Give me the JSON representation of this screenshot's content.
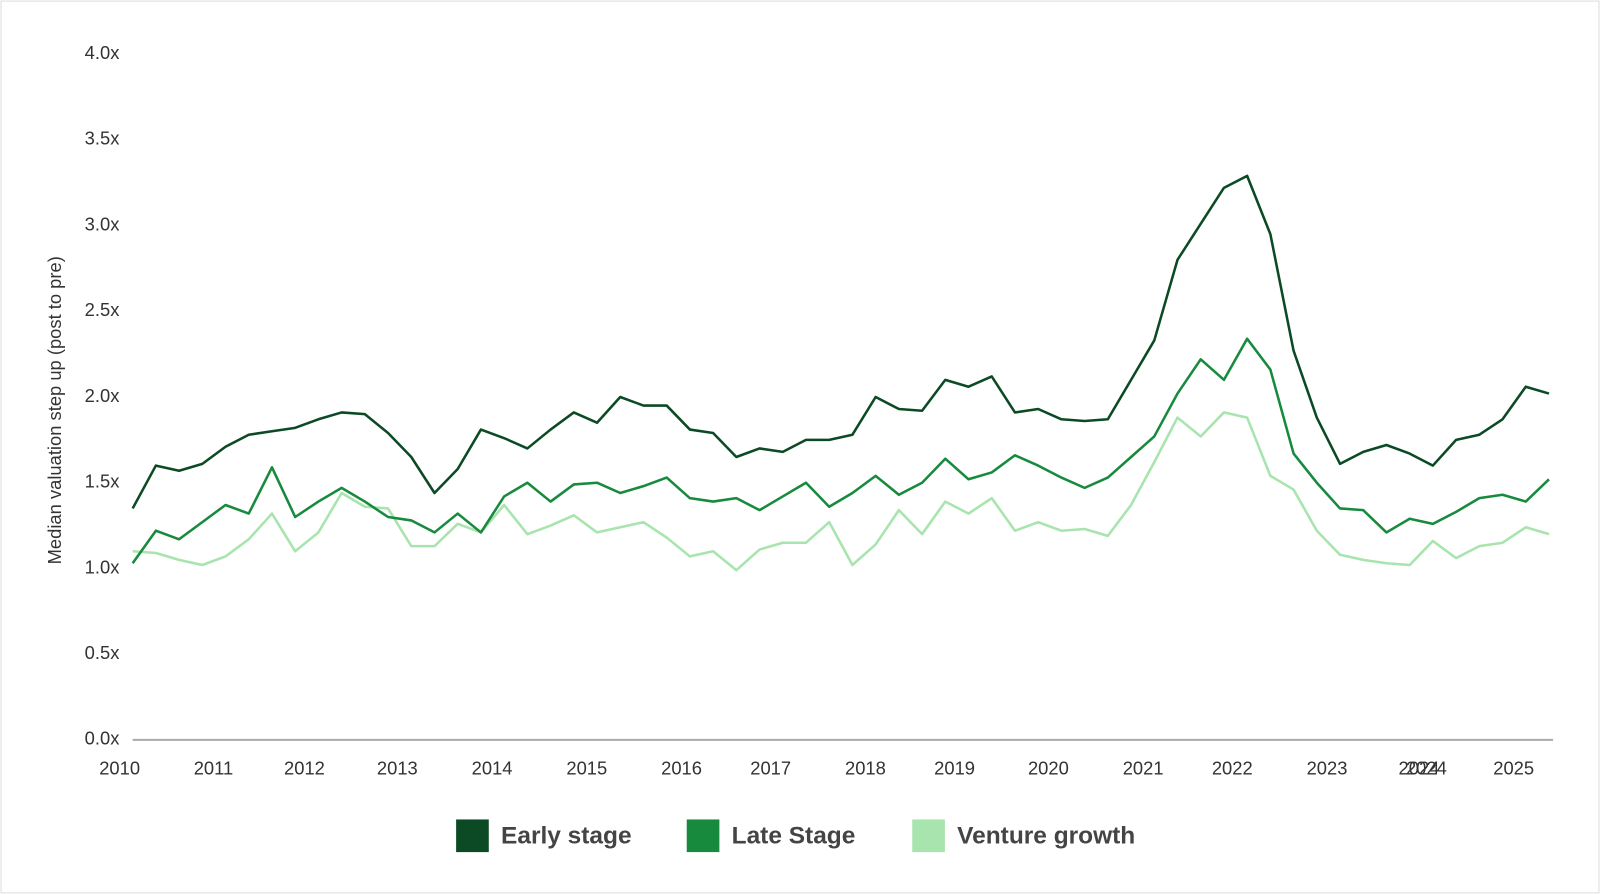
{
  "chart_data": {
    "type": "line",
    "ylabel": "Median valuation step up (post to pre)",
    "x": [
      2010,
      2010.25,
      2010.5,
      2010.75,
      2011,
      2011.25,
      2011.5,
      2011.75,
      2012,
      2012.25,
      2012.5,
      2012.75,
      2013,
      2013.25,
      2013.5,
      2013.75,
      2014,
      2014.25,
      2014.5,
      2014.75,
      2015,
      2015.25,
      2015.5,
      2015.75,
      2016,
      2016.25,
      2016.5,
      2016.75,
      2017,
      2017.25,
      2017.5,
      2017.75,
      2018,
      2018.25,
      2018.5,
      2018.75,
      2019,
      2019.25,
      2019.5,
      2019.75,
      2020,
      2020.25,
      2020.5,
      2020.75,
      2021,
      2021.25,
      2021.5,
      2021.75,
      2022,
      2022.25,
      2022.5,
      2022.75,
      2023,
      2023.25,
      2023.5,
      2023.75,
      2024,
      2024.25,
      2024.5,
      2024.75,
      2025,
      2025.25
    ],
    "series": [
      {
        "name": "Early stage",
        "color": "#0b4a24",
        "values": [
          1.35,
          1.6,
          1.57,
          1.61,
          1.71,
          1.78,
          1.8,
          1.82,
          1.87,
          1.91,
          1.9,
          1.79,
          1.65,
          1.44,
          1.58,
          1.81,
          1.76,
          1.7,
          1.81,
          1.91,
          1.85,
          2.0,
          1.95,
          1.95,
          1.81,
          1.79,
          1.65,
          1.7,
          1.68,
          1.75,
          1.75,
          1.78,
          2.0,
          1.93,
          1.92,
          2.1,
          2.06,
          2.12,
          1.91,
          1.93,
          1.87,
          1.86,
          1.87,
          2.1,
          2.33,
          2.8,
          3.01,
          3.22,
          3.29,
          2.95,
          2.27,
          1.88,
          1.61,
          1.68,
          1.72,
          1.67,
          1.6,
          1.75,
          1.78,
          1.87,
          2.06,
          2.02
        ]
      },
      {
        "name": "Late Stage",
        "color": "#178a3e",
        "values": [
          1.03,
          1.22,
          1.17,
          1.27,
          1.37,
          1.32,
          1.59,
          1.3,
          1.39,
          1.47,
          1.39,
          1.3,
          1.28,
          1.21,
          1.32,
          1.21,
          1.42,
          1.5,
          1.39,
          1.49,
          1.5,
          1.44,
          1.48,
          1.53,
          1.41,
          1.39,
          1.41,
          1.34,
          1.42,
          1.5,
          1.36,
          1.44,
          1.54,
          1.43,
          1.5,
          1.64,
          1.52,
          1.56,
          1.66,
          1.6,
          1.53,
          1.47,
          1.53,
          1.65,
          1.77,
          2.02,
          2.22,
          2.1,
          2.34,
          2.16,
          1.67,
          1.5,
          1.35,
          1.34,
          1.21,
          1.29,
          1.26,
          1.33,
          1.41,
          1.43,
          1.39,
          1.52
        ]
      },
      {
        "name": "Venture growth",
        "color": "#a8e4ad",
        "values": [
          1.1,
          1.09,
          1.05,
          1.02,
          1.07,
          1.17,
          1.32,
          1.1,
          1.21,
          1.44,
          1.36,
          1.35,
          1.13,
          1.13,
          1.26,
          1.21,
          1.37,
          1.2,
          1.25,
          1.31,
          1.21,
          1.24,
          1.27,
          1.18,
          1.07,
          1.1,
          0.99,
          1.11,
          1.15,
          1.15,
          1.27,
          1.02,
          1.14,
          1.34,
          1.2,
          1.39,
          1.32,
          1.41,
          1.22,
          1.27,
          1.22,
          1.23,
          1.19,
          1.37,
          1.62,
          1.88,
          1.77,
          1.91,
          1.88,
          1.54,
          1.46,
          1.22,
          1.08,
          1.05,
          1.03,
          1.02,
          1.16,
          1.06,
          1.13,
          1.15,
          1.24,
          1.2
        ]
      }
    ],
    "xlim": [
      2010,
      2025.25
    ],
    "ylim": [
      0,
      4
    ],
    "yticks": [
      {
        "value": 0,
        "label": "0.0x"
      },
      {
        "value": 0.5,
        "label": "0.5x"
      },
      {
        "value": 1,
        "label": "1.0x"
      },
      {
        "value": 1.5,
        "label": "1.5x"
      },
      {
        "value": 2,
        "label": "2.0x"
      },
      {
        "value": 2.5,
        "label": "2.5x"
      },
      {
        "value": 3,
        "label": "3.0x"
      },
      {
        "value": 3.5,
        "label": "3.5x"
      },
      {
        "value": 4,
        "label": "4.0x"
      }
    ],
    "xticks": [
      {
        "value": 2009.86,
        "label": "2010"
      },
      {
        "value": 2010.87,
        "label": "2011"
      },
      {
        "value": 2011.85,
        "label": "2012"
      },
      {
        "value": 2012.85,
        "label": "2013"
      },
      {
        "value": 2013.87,
        "label": "2014"
      },
      {
        "value": 2014.89,
        "label": "2015"
      },
      {
        "value": 2015.91,
        "label": "2016"
      },
      {
        "value": 2016.87,
        "label": "2017"
      },
      {
        "value": 2017.89,
        "label": "2018"
      },
      {
        "value": 2018.85,
        "label": "2019"
      },
      {
        "value": 2019.86,
        "label": "2020"
      },
      {
        "value": 2020.88,
        "label": "2021"
      },
      {
        "value": 2021.84,
        "label": "2022"
      },
      {
        "value": 2022.86,
        "label": "2023"
      },
      {
        "value": 2023.85,
        "label": "2024"
      },
      {
        "value": 2023.93,
        "label": "2024"
      },
      {
        "value": 2024.87,
        "label": "2025"
      }
    ],
    "grid": false,
    "legend": "bottom"
  }
}
